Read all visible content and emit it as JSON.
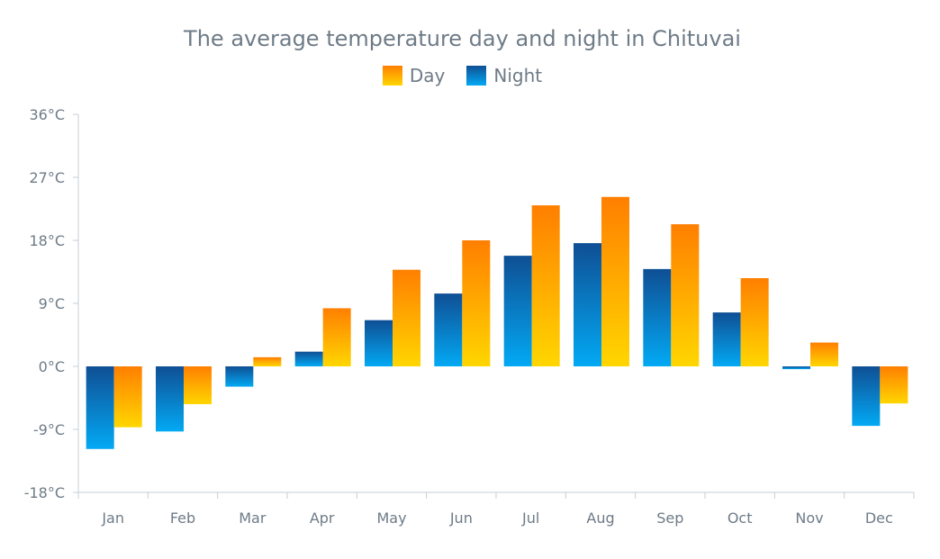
{
  "chart_data": {
    "type": "bar",
    "title": "The average temperature day and night in Chituvai",
    "xlabel": "",
    "ylabel": "",
    "categories": [
      "Jan",
      "Feb",
      "Mar",
      "Apr",
      "May",
      "Jun",
      "Jul",
      "Aug",
      "Sep",
      "Oct",
      "Nov",
      "Dec"
    ],
    "series": [
      {
        "name": "Night",
        "values": [
          -11.8,
          -9.3,
          -2.9,
          2.1,
          6.6,
          10.4,
          15.8,
          17.6,
          13.9,
          7.7,
          -0.4,
          -8.5
        ],
        "color_top": "#0f4f94",
        "color_bottom": "#03a9f4"
      },
      {
        "name": "Day",
        "values": [
          -8.7,
          -5.4,
          1.3,
          8.3,
          13.8,
          18.0,
          23.0,
          24.2,
          20.3,
          12.6,
          3.4,
          -5.3
        ],
        "color_top": "#ff7f00",
        "color_bottom": "#ffd600"
      }
    ],
    "ylim": [
      -18,
      36
    ],
    "yticks": [
      36,
      27,
      18,
      9,
      0,
      -9,
      -18
    ],
    "ytick_labels": [
      "36°C",
      "27°C",
      "18°C",
      "9°C",
      "0°C",
      "-9°C",
      "-18°C"
    ],
    "legend_position": "top-center",
    "grid": false
  }
}
